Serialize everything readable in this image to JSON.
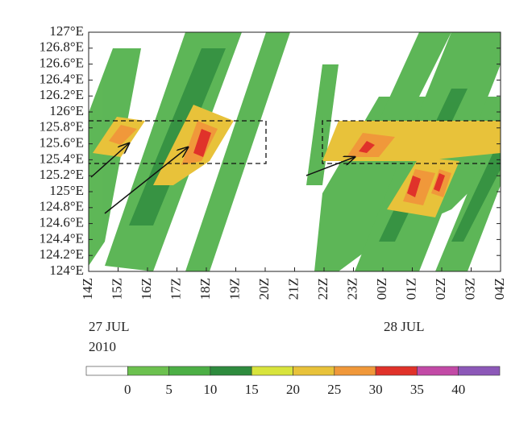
{
  "chart_data": {
    "type": "hovmoller",
    "ylim": [
      124,
      127
    ],
    "yticks": [
      {
        "value": 124,
        "label": "124°E"
      },
      {
        "value": 124.2,
        "label": "124.2°E"
      },
      {
        "value": 124.4,
        "label": "124.4°E"
      },
      {
        "value": 124.6,
        "label": "124.6°E"
      },
      {
        "value": 124.8,
        "label": "124.8°E"
      },
      {
        "value": 125,
        "label": "125°E"
      },
      {
        "value": 125.2,
        "label": "125.2°E"
      },
      {
        "value": 125.4,
        "label": "125.4°E"
      },
      {
        "value": 125.6,
        "label": "125.6°E"
      },
      {
        "value": 125.8,
        "label": "125.8°E"
      },
      {
        "value": 126,
        "label": "126°E"
      },
      {
        "value": 126.2,
        "label": "126.2°E"
      },
      {
        "value": 126.4,
        "label": "126.4°E"
      },
      {
        "value": 126.6,
        "label": "126.6°E"
      },
      {
        "value": 126.8,
        "label": "126.8°E"
      },
      {
        "value": 127,
        "label": "127°E"
      }
    ],
    "categories": [
      "14Z",
      "15Z",
      "16Z",
      "17Z",
      "18Z",
      "19Z",
      "20Z",
      "21Z",
      "22Z",
      "23Z",
      "00Z",
      "01Z",
      "02Z",
      "03Z",
      "04Z"
    ],
    "date_labels": [
      "27 JUL",
      "2010",
      "28 JUL"
    ],
    "colorbar": {
      "ticks": [
        0,
        5,
        10,
        15,
        20,
        25,
        30,
        35,
        40
      ],
      "colors": [
        "#ffffff",
        "#6cc14f",
        "#4caf45",
        "#2e8b3e",
        "#d8e43c",
        "#e8c23a",
        "#f0983a",
        "#e0322a",
        "#c24aa6",
        "#8c58b8"
      ]
    }
  }
}
